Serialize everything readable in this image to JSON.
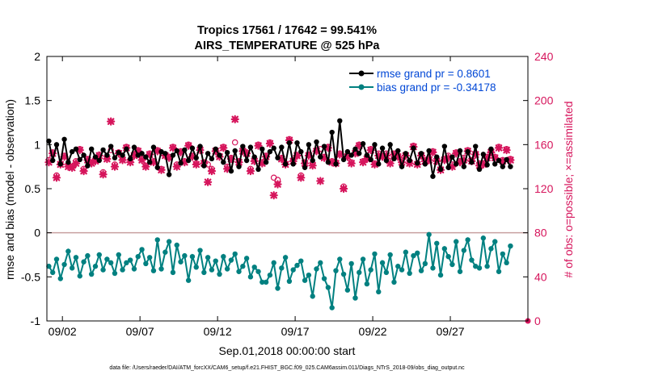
{
  "chart_data": {
    "type": "line",
    "title": "Tropics 17561 / 17642 = 99.541%",
    "subtitle": "AIRS_TEMPERATURE @ 525 hPa",
    "xlabel": "Sep.01,2018 00:00:00 start",
    "ylabel_left": "rmse and bias (model - observation)",
    "ylabel_right": "# of obs: o=possible; ×=assimilated",
    "footnote": "data file: /Users/raeder/DAI/ATM_forcXX/CAM6_setup/f.e21.FHIST_BGC.f09_025.CAM6assim.011/Diags_NTrS_2018-09/obs_diag_output.nc",
    "xlim": [
      0,
      31
    ],
    "ylim_left": [
      -1,
      2
    ],
    "ylim_right": [
      0,
      240
    ],
    "left_ticks": [
      "-1",
      "-0.5",
      "0",
      "0.5",
      "1",
      "1.5",
      "2"
    ],
    "right_ticks": [
      "0",
      "40",
      "80",
      "120",
      "160",
      "200",
      "240"
    ],
    "x_tick_labels": [
      "09/02",
      "09/07",
      "09/12",
      "09/17",
      "09/22",
      "09/27"
    ],
    "x_tick_days": [
      1.0,
      6.0,
      11.0,
      16.0,
      21.0,
      26.0
    ],
    "zero_line": 0,
    "colors": {
      "rmse": "#000000",
      "bias": "#008080",
      "obs": "#d6155c",
      "rmse_legend_text": "#0047d6",
      "zero": "#c8a0a0",
      "axis": "#000000"
    },
    "legend": [
      {
        "label": "rmse grand pr = 0.8601",
        "series": "rmse"
      },
      {
        "label": "bias grand pr = -0.34178",
        "series": "bias"
      }
    ],
    "x": [
      0.125,
      0.375,
      0.625,
      0.875,
      1.125,
      1.375,
      1.625,
      1.875,
      2.125,
      2.375,
      2.625,
      2.875,
      3.125,
      3.375,
      3.625,
      3.875,
      4.125,
      4.375,
      4.625,
      4.875,
      5.125,
      5.375,
      5.625,
      5.875,
      6.125,
      6.375,
      6.625,
      6.875,
      7.125,
      7.375,
      7.625,
      7.875,
      8.125,
      8.375,
      8.625,
      8.875,
      9.125,
      9.375,
      9.625,
      9.875,
      10.125,
      10.375,
      10.625,
      10.875,
      11.125,
      11.375,
      11.625,
      11.875,
      12.125,
      12.375,
      12.625,
      12.875,
      13.125,
      13.375,
      13.625,
      13.875,
      14.125,
      14.375,
      14.625,
      14.875,
      15.125,
      15.375,
      15.625,
      15.875,
      16.125,
      16.375,
      16.625,
      16.875,
      17.125,
      17.375,
      17.625,
      17.875,
      18.125,
      18.375,
      18.625,
      18.875,
      19.125,
      19.375,
      19.625,
      19.875,
      20.125,
      20.375,
      20.625,
      20.875,
      21.125,
      21.375,
      21.625,
      21.875,
      22.125,
      22.375,
      22.625,
      22.875,
      23.125,
      23.375,
      23.625,
      23.875,
      24.125,
      24.375,
      24.625,
      24.875,
      25.125,
      25.375,
      25.625,
      25.875,
      26.125,
      26.375,
      26.625,
      26.875,
      27.125,
      27.375,
      27.625,
      27.875,
      28.125,
      28.375,
      28.625,
      28.875,
      29.125,
      29.375,
      29.625,
      29.875
    ],
    "series": [
      {
        "name": "rmse",
        "axis": "left",
        "marker": "circle",
        "values": [
          1.04,
          0.82,
          1.0,
          0.78,
          1.06,
          0.8,
          0.92,
          0.95,
          0.83,
          0.88,
          0.76,
          0.95,
          0.86,
          0.82,
          0.94,
          0.88,
          0.98,
          0.85,
          0.91,
          0.88,
          0.95,
          0.84,
          0.97,
          0.88,
          0.9,
          0.86,
          0.8,
          0.97,
          0.74,
          0.92,
          0.9,
          0.66,
          0.88,
          0.93,
          0.79,
          0.94,
          0.82,
          0.96,
          0.85,
          0.98,
          0.76,
          0.9,
          0.84,
          0.95,
          0.88,
          0.8,
          0.91,
          0.7,
          0.93,
          0.75,
          0.98,
          0.82,
          0.97,
          0.86,
          0.72,
          0.95,
          0.8,
          0.92,
          0.96,
          0.85,
          0.97,
          0.78,
          1.02,
          0.78,
          1.02,
          0.92,
          0.74,
          1.0,
          0.82,
          1.03,
          0.86,
          0.98,
          0.8,
          1.14,
          0.78,
          1.27,
          0.83,
          0.92,
          0.88,
          0.95,
          0.9,
          1.01,
          0.88,
          0.83,
          1.0,
          0.78,
          0.96,
          0.82,
          1.0,
          0.84,
          0.93,
          0.75,
          0.9,
          0.82,
          0.96,
          0.79,
          0.9,
          0.78,
          0.93,
          0.64,
          0.86,
          0.72,
          0.98,
          0.74,
          0.86,
          0.78,
          0.93,
          0.75,
          0.92,
          0.8,
          0.98,
          0.72,
          0.89,
          0.77,
          0.95,
          0.78,
          0.82,
          0.75,
          0.83,
          0.75
        ]
      },
      {
        "name": "bias",
        "axis": "left",
        "marker": "circle",
        "values": [
          -0.38,
          -0.45,
          -0.3,
          -0.52,
          -0.36,
          -0.21,
          -0.4,
          -0.28,
          -0.49,
          -0.33,
          -0.26,
          -0.47,
          -0.38,
          -0.25,
          -0.42,
          -0.3,
          -0.34,
          -0.46,
          -0.25,
          -0.42,
          -0.34,
          -0.31,
          -0.41,
          -0.27,
          -0.19,
          -0.35,
          -0.28,
          -0.43,
          -0.08,
          -0.41,
          -0.22,
          -0.1,
          -0.45,
          -0.14,
          -0.33,
          -0.26,
          -0.54,
          -0.27,
          -0.39,
          -0.2,
          -0.45,
          -0.28,
          -0.42,
          -0.32,
          -0.47,
          -0.27,
          -0.41,
          -0.31,
          -0.24,
          -0.44,
          -0.38,
          -0.29,
          -0.5,
          -0.39,
          -0.44,
          -0.56,
          -0.56,
          -0.48,
          -0.34,
          -0.63,
          -0.4,
          -0.28,
          -0.55,
          -0.42,
          -0.37,
          -0.32,
          -0.54,
          -0.48,
          -0.72,
          -0.41,
          -0.34,
          -0.52,
          -0.62,
          -0.85,
          -0.43,
          -0.3,
          -0.47,
          -0.65,
          -0.35,
          -0.74,
          -0.45,
          -0.3,
          -0.58,
          -0.42,
          -0.24,
          -0.67,
          -0.34,
          -0.45,
          -0.25,
          -0.56,
          -0.38,
          -0.42,
          -0.22,
          -0.46,
          -0.26,
          -0.23,
          -0.43,
          -0.35,
          -0.02,
          -0.4,
          -0.12,
          -0.48,
          -0.18,
          -0.27,
          -0.36,
          -0.1,
          -0.44,
          -0.2,
          -0.08,
          -0.31,
          -0.38,
          -0.4,
          -0.06,
          -0.38,
          -0.18,
          -0.1,
          -0.44,
          -0.24,
          -0.34,
          -0.15
        ]
      },
      {
        "name": "obs_possible",
        "axis": "right",
        "marker": "o",
        "values": [
          146,
          153,
          132,
          143,
          150,
          142,
          140,
          145,
          156,
          138,
          147,
          144,
          146,
          151,
          135,
          148,
          155,
          142,
          153,
          147,
          158,
          146,
          151,
          155,
          147,
          141,
          152,
          145,
          155,
          138,
          151,
          149,
          158,
          142,
          154,
          145,
          160,
          150,
          143,
          156,
          144,
          142,
          138,
          155,
          150,
          158,
          140,
          148,
          162,
          145,
          155,
          153,
          138,
          146,
          160,
          144,
          150,
          162,
          130,
          128,
          148,
          143,
          165,
          146,
          150,
          132,
          144,
          151,
          143,
          155,
          156,
          149,
          158,
          145,
          144,
          152,
          122,
          150,
          144,
          153,
          160,
          145,
          148,
          156,
          143,
          152,
          150,
          152,
          145,
          152,
          150,
          146,
          151,
          145,
          159,
          143,
          151,
          146,
          148,
          154,
          146,
          138,
          147,
          150,
          142,
          153,
          145,
          148,
          155,
          146,
          152,
          143,
          143,
          149,
          154,
          149,
          158,
          146,
          156,
          147
        ]
      },
      {
        "name": "obs_assimilated",
        "axis": "right",
        "marker": "x",
        "values": [
          144,
          152,
          130,
          142,
          149,
          140,
          139,
          143,
          155,
          136,
          146,
          143,
          145,
          150,
          133,
          147,
          181,
          140,
          152,
          146,
          157,
          144,
          150,
          154,
          146,
          140,
          151,
          144,
          154,
          137,
          150,
          148,
          157,
          140,
          153,
          144,
          159,
          149,
          142,
          155,
          143,
          126,
          136,
          154,
          149,
          157,
          138,
          147,
          183,
          144,
          154,
          152,
          136,
          145,
          159,
          143,
          149,
          161,
          114,
          124,
          147,
          142,
          164,
          145,
          150,
          130,
          143,
          150,
          141,
          154,
          127,
          148,
          157,
          144,
          143,
          151,
          120,
          149,
          143,
          152,
          159,
          144,
          147,
          155,
          142,
          150,
          149,
          150,
          143,
          151,
          149,
          144,
          150,
          143,
          158,
          142,
          150,
          145,
          146,
          153,
          145,
          137,
          146,
          148,
          140,
          152,
          144,
          146,
          154,
          145,
          151,
          141,
          142,
          148,
          153,
          148,
          157,
          145,
          155,
          146
        ]
      }
    ]
  }
}
